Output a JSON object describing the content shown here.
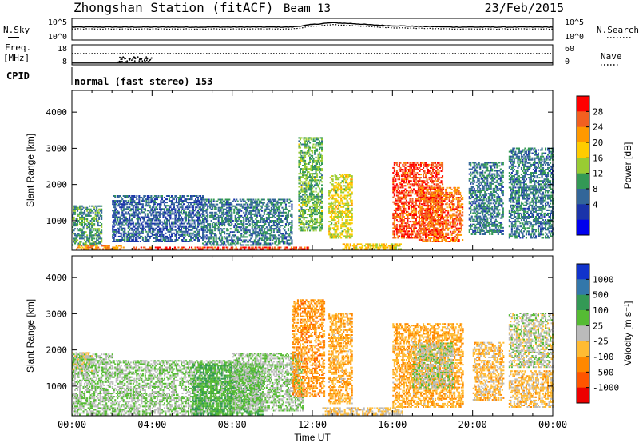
{
  "header": {
    "title": "Zhongshan Station (fitACF)",
    "beam": "Beam 13",
    "date": "23/Feb/2015"
  },
  "sky_panel": {
    "left_label": "N.Sky",
    "right_label": "N.Search",
    "left_ticks": [
      "10^5",
      "10^0"
    ],
    "right_ticks": [
      "10^5",
      "10^0"
    ]
  },
  "freq_panel": {
    "left_label_line1": "Freq.",
    "left_label_line2": "[MHz]",
    "left_ticks": [
      "18",
      "8"
    ],
    "right_label": "Nave",
    "right_ticks": [
      "60",
      "0"
    ]
  },
  "cpid": {
    "label": "CPID",
    "mode": "normal (fast stereo) 153"
  },
  "power_panel": {
    "colorbar_label": "Power [dB]",
    "colorbar_ticks": [
      "28",
      "24",
      "20",
      "16",
      "12",
      "8",
      "4"
    ],
    "colorbar_colors": [
      "#ff0000",
      "#f26020",
      "#ff9900",
      "#ffcc00",
      "#99cc33",
      "#339955",
      "#336699",
      "#1a33aa",
      "#0000ee"
    ]
  },
  "velocity_panel": {
    "colorbar_label": "Velocity [m s⁻¹]",
    "colorbar_ticks": [
      "1000",
      "500",
      "100",
      "25",
      "-25",
      "-100",
      "-500",
      "-1000"
    ],
    "colorbar_colors": [
      "#1133cc",
      "#3377aa",
      "#339955",
      "#55bb33",
      "#bbbbbb",
      "#ffbb33",
      "#ff8800",
      "#ff5500",
      "#ee0000"
    ]
  },
  "shared_axes": {
    "ylabel": "Slant Range [km]",
    "yticks": [
      "4000",
      "3000",
      "2000",
      "1000"
    ],
    "xlabel": "Time UT",
    "xticks": [
      "00:00",
      "04:00",
      "08:00",
      "12:00",
      "16:00",
      "20:00",
      "00:00"
    ]
  },
  "chart_data": {
    "type": "heatmap",
    "title": "Zhongshan Station (fitACF)",
    "xlabel": "Time UT",
    "ylabel": "Slant Range [km]",
    "xlim_hours": [
      0,
      24
    ],
    "ylim_km": [
      180,
      4600
    ],
    "panels": [
      {
        "name": "Power",
        "unit": "dB",
        "colorbar_range": [
          0,
          32
        ],
        "regions": [
          {
            "t": [
              0.0,
              1.5
            ],
            "r": [
              300,
              1400
            ],
            "value": 12
          },
          {
            "t": [
              0.2,
              2.6
            ],
            "r": [
              190,
              300
            ],
            "value": 24
          },
          {
            "t": [
              3.0,
              11.8
            ],
            "r": [
              190,
              280
            ],
            "value": 28
          },
          {
            "t": [
              2.0,
              6.5
            ],
            "r": [
              400,
              1700
            ],
            "value": 8
          },
          {
            "t": [
              6.5,
              11.0
            ],
            "r": [
              300,
              1600
            ],
            "value": 10
          },
          {
            "t": [
              11.3,
              12.5
            ],
            "r": [
              700,
              3300
            ],
            "value": 14
          },
          {
            "t": [
              12.8,
              14.0
            ],
            "r": [
              500,
              2300
            ],
            "value": 18
          },
          {
            "t": [
              13.5,
              16.5
            ],
            "r": [
              190,
              350
            ],
            "value": 20
          },
          {
            "t": [
              16.0,
              18.5
            ],
            "r": [
              500,
              2600
            ],
            "value": 28
          },
          {
            "t": [
              17.3,
              19.5
            ],
            "r": [
              400,
              1900
            ],
            "value": 26
          },
          {
            "t": [
              19.8,
              21.5
            ],
            "r": [
              600,
              2600
            ],
            "value": 10
          },
          {
            "t": [
              21.8,
              24.0
            ],
            "r": [
              500,
              3000
            ],
            "value": 10
          }
        ]
      },
      {
        "name": "Velocity",
        "unit": "m s-1",
        "colorbar_range": [
          -1000,
          1000
        ],
        "regions": [
          {
            "t": [
              0.0,
              2.0
            ],
            "r": [
              190,
              1900
            ],
            "value": 100
          },
          {
            "t": [
              0.0,
              1.0
            ],
            "r": [
              1400,
              1900
            ],
            "value": 0
          },
          {
            "t": [
              2.0,
              8.0
            ],
            "r": [
              190,
              1700
            ],
            "value": 100
          },
          {
            "t": [
              6.0,
              9.5
            ],
            "r": [
              190,
              1600
            ],
            "value": 300
          },
          {
            "t": [
              8.0,
              11.5
            ],
            "r": [
              300,
              1900
            ],
            "value": 100
          },
          {
            "t": [
              11.0,
              12.6
            ],
            "r": [
              700,
              3400
            ],
            "value": -400
          },
          {
            "t": [
              12.8,
              14.0
            ],
            "r": [
              500,
              3000
            ],
            "value": -300
          },
          {
            "t": [
              12.5,
              16.5
            ],
            "r": [
              190,
              380
            ],
            "value": -150
          },
          {
            "t": [
              16.0,
              19.5
            ],
            "r": [
              400,
              2700
            ],
            "value": -300
          },
          {
            "t": [
              17.0,
              19.0
            ],
            "r": [
              900,
              2200
            ],
            "value": 50
          },
          {
            "t": [
              20.0,
              21.5
            ],
            "r": [
              600,
              2200
            ],
            "value": -200
          },
          {
            "t": [
              21.8,
              24.0
            ],
            "r": [
              1500,
              3000
            ],
            "value": 0
          },
          {
            "t": [
              21.8,
              24.0
            ],
            "r": [
              400,
              1400
            ],
            "value": -200
          }
        ]
      }
    ],
    "sky_noise_log10": [
      3.0,
      3.0,
      3.0,
      3.0,
      3.0,
      3.0,
      3.0,
      3.0,
      3.0,
      3.0,
      3.0,
      3.0,
      3.6,
      4.0,
      3.8,
      3.5,
      3.3,
      3.2,
      3.1,
      3.0,
      3.0,
      3.0,
      3.0,
      3.0,
      3.0
    ],
    "frequency_mhz": [
      10.5,
      10.5,
      10.5,
      10.5,
      10.5,
      10.5,
      10.5,
      10.5,
      10.5,
      10.5,
      10.5,
      10.5,
      10.5,
      10.5,
      10.5,
      10.5,
      10.5,
      10.5,
      10.5,
      10.5,
      10.5,
      10.5,
      10.5,
      10.5,
      10.5
    ],
    "nave": [
      14,
      14,
      14,
      14,
      14,
      14,
      14,
      14,
      14,
      14,
      14,
      14,
      14,
      14,
      14,
      14,
      14,
      14,
      14,
      14,
      14,
      14,
      14,
      14,
      14
    ]
  }
}
